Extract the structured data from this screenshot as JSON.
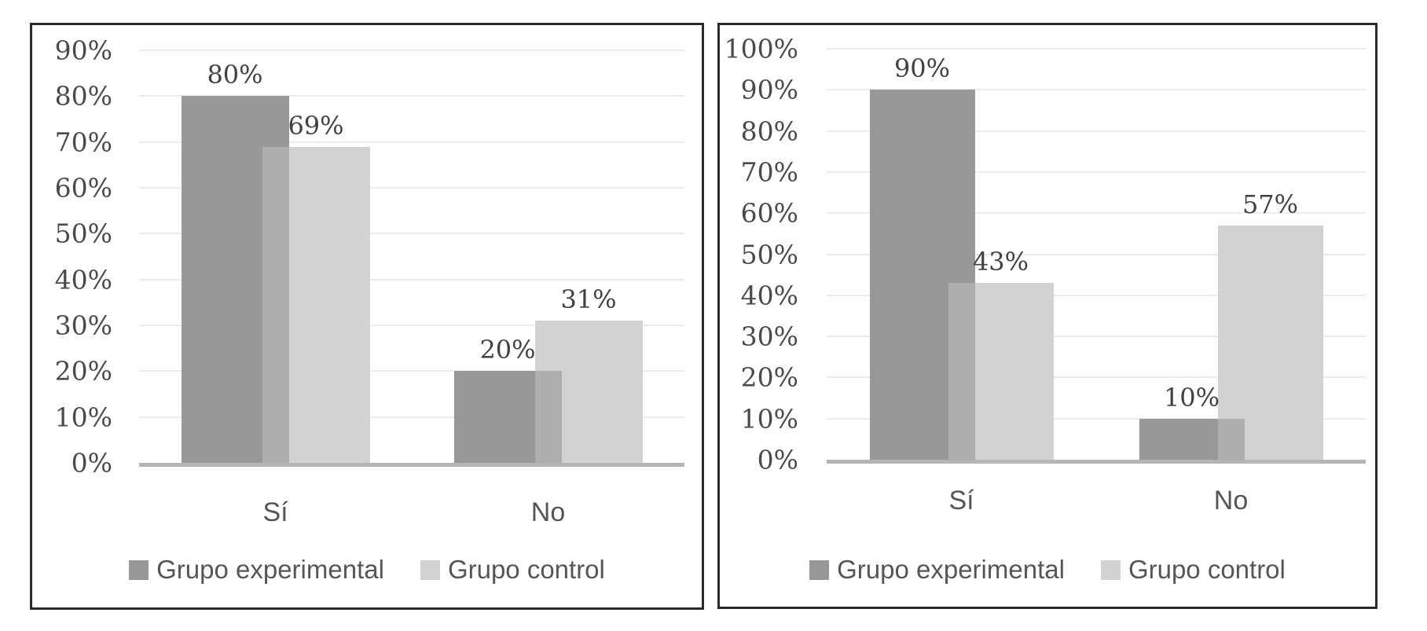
{
  "page": {
    "background": "#ffffff",
    "description_visible_text_only": true
  },
  "chart_data": [
    {
      "type": "bar",
      "title": "",
      "xlabel": "",
      "ylabel": "",
      "categories": [
        "Sí",
        "No"
      ],
      "series": [
        {
          "name": "Grupo experimental",
          "values": [
            80,
            20
          ],
          "data_labels": [
            "80%",
            "20%"
          ],
          "color": "#989898"
        },
        {
          "name": "Grupo control",
          "values": [
            69,
            31
          ],
          "data_labels": [
            "69%",
            "31%"
          ],
          "color": "#d2d2d2"
        }
      ],
      "ylim": [
        0,
        90
      ],
      "ytick_step": 10,
      "yticks": [
        "0%",
        "10%",
        "20%",
        "30%",
        "40%",
        "50%",
        "60%",
        "70%",
        "80%",
        "90%"
      ],
      "grid": true,
      "legend_position": "bottom",
      "legend": [
        "Grupo experimental",
        "Grupo control"
      ],
      "bar_overlap_blend_color": "#aeaeae",
      "gridline_color": "#ececec",
      "axis_line_color": "#b5b5b5",
      "panel_border_color": "#2b2b2b",
      "text_color": "#4a4a4a"
    },
    {
      "type": "bar",
      "title": "",
      "xlabel": "",
      "ylabel": "",
      "categories": [
        "Sí",
        "No"
      ],
      "series": [
        {
          "name": "Grupo experimental",
          "values": [
            90,
            10
          ],
          "data_labels": [
            "90%",
            "10%"
          ],
          "color": "#989898"
        },
        {
          "name": "Grupo control",
          "values": [
            43,
            57
          ],
          "data_labels": [
            "43%",
            "57%"
          ],
          "color": "#d2d2d2"
        }
      ],
      "ylim": [
        0,
        100
      ],
      "ytick_step": 10,
      "yticks": [
        "0%",
        "10%",
        "20%",
        "30%",
        "40%",
        "50%",
        "60%",
        "70%",
        "80%",
        "90%",
        "100%"
      ],
      "grid": true,
      "legend_position": "bottom",
      "legend": [
        "Grupo experimental",
        "Grupo control"
      ],
      "bar_overlap_blend_color": "#aeaeae",
      "gridline_color": "#ececec",
      "axis_line_color": "#b5b5b5",
      "panel_border_color": "#2b2b2b",
      "text_color": "#4a4a4a"
    }
  ]
}
